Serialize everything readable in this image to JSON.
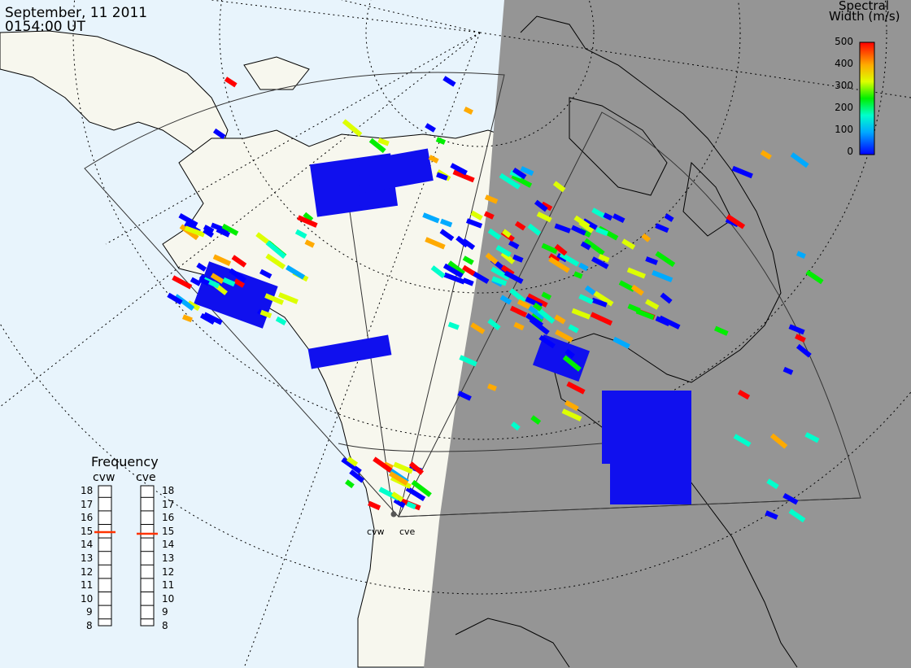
{
  "header": {
    "date": "September, 11 2011",
    "time": "0154:00 UT"
  },
  "colorbar": {
    "title_line1": "Spectral",
    "title_line2": "Width (m/s)",
    "ticks": [
      "500",
      "400",
      "300",
      "200",
      "100",
      "0"
    ]
  },
  "frequency": {
    "title": "Frequency",
    "radars": [
      "cvw",
      "cve"
    ],
    "scale": [
      "18",
      "17",
      "16",
      "15",
      "14",
      "13",
      "12",
      "11",
      "10",
      "9",
      "8"
    ],
    "selected": {
      "cvw": 15,
      "cve": 15
    }
  },
  "sites": {
    "cvw": "cvw",
    "cve": "cve"
  },
  "colors": {
    "ocean": "#e8f4fc",
    "land": "#f7f7ee",
    "night": "#959595",
    "marker": "#ff3300"
  }
}
